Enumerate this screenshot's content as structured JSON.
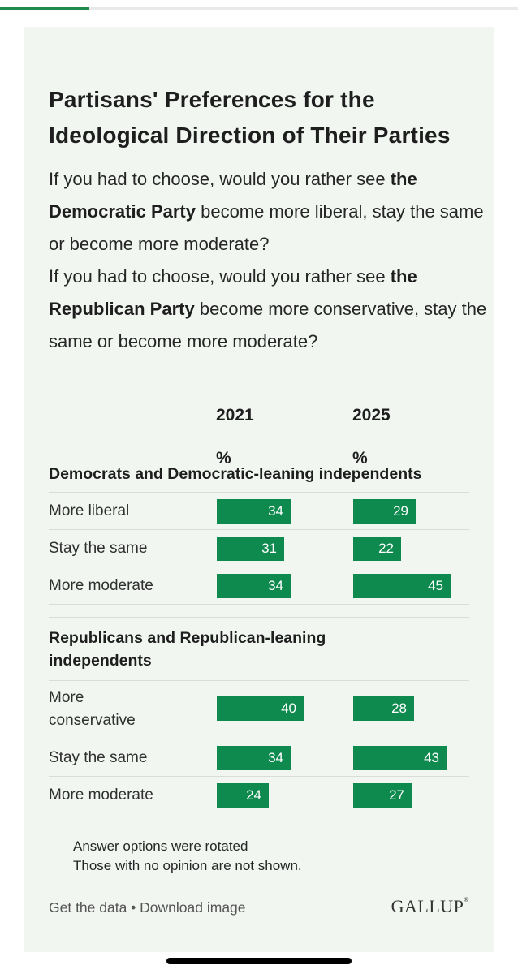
{
  "colors": {
    "bar": "#0e8a4f",
    "card": "#f1f6f1",
    "accent": "#1f8a4c"
  },
  "chart_data": {
    "type": "bar",
    "title": "Partisans' Preferences for the Ideological Direction of Their Parties",
    "question_parts": [
      "If you had to choose, would you rather see ",
      "the Democratic Party",
      " become more liberal, stay the same or become more moderate?",
      "If you had to choose, would you rather see ",
      "the Republican Party",
      " become more conservative, stay the same or become more moderate?"
    ],
    "columns": [
      "2021",
      "2025"
    ],
    "unit": "%",
    "scale_max": 45,
    "groups": [
      {
        "label": "Democrats and Democratic-leaning independents",
        "rows": [
          {
            "label": "More liberal",
            "values": [
              34,
              29
            ]
          },
          {
            "label": "Stay the same",
            "values": [
              31,
              22
            ]
          },
          {
            "label": "More moderate",
            "values": [
              34,
              45
            ]
          }
        ]
      },
      {
        "label": "Republicans and Republican-leaning independents",
        "rows": [
          {
            "label": "More conservative",
            "values": [
              40,
              28
            ]
          },
          {
            "label": "Stay the same",
            "values": [
              34,
              43
            ]
          },
          {
            "label": "More moderate",
            "values": [
              24,
              27
            ]
          }
        ]
      }
    ],
    "notes": [
      "Answer options were rotated",
      "Those with no opinion are not shown."
    ]
  },
  "footer": {
    "links": "Get the data • Download image",
    "brand": "GALLUP",
    "brand_mark": "®"
  }
}
